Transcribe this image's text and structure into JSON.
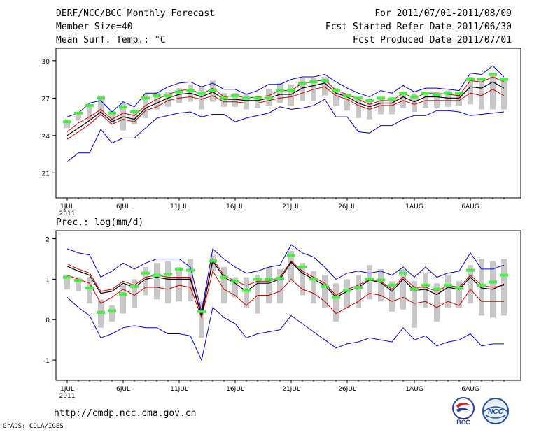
{
  "header": {
    "left": [
      "DERF/NCC/BCC Monthly Forecast",
      "Member Size=40",
      "Mean Surf. Temp.: °C"
    ],
    "right": [
      "For 2011/07/01-2011/08/09",
      "Fcst Started Refer Date 2011/06/30",
      "Fcst Produced Date 2011/07/01"
    ]
  },
  "footer": {
    "url": "http://cmdp.ncc.cma.gov.cn",
    "credit": "GrADS: COLA/IGES"
  },
  "logos": {
    "left_text": "BCC",
    "right_text": "NCC"
  },
  "colors": {
    "max_min": "#0000cc",
    "mean": "#000000",
    "spread": "#cc0000",
    "member_box": "#c8c8c8",
    "median": "#44ee44"
  },
  "chart_data": [
    {
      "type": "line",
      "title": "Mean Surf. Temp.: °C",
      "x_ticks": [
        "1JUL",
        "6JUL",
        "11JUL",
        "16JUL",
        "21JUL",
        "26JUL",
        "1AUG",
        "6AUG"
      ],
      "x_tick_days": [
        1,
        6,
        11,
        16,
        21,
        26,
        32,
        37
      ],
      "x_sublabel": "2011",
      "yticks": [
        21,
        24,
        27,
        30
      ],
      "ylim": [
        19,
        31
      ],
      "days": 40,
      "series": [
        {
          "name": "max",
          "values": [
            25.5,
            25.8,
            26.6,
            26.8,
            25.9,
            26.7,
            26.3,
            27.4,
            27.4,
            27.9,
            28.2,
            28.3,
            27.9,
            28.2,
            27.7,
            27.7,
            27.3,
            27.6,
            28.1,
            28.1,
            28.5,
            28.7,
            28.7,
            28.9,
            28.3,
            27.8,
            27.4,
            27.1,
            27.6,
            27.4,
            28.0,
            27.5,
            27.8,
            27.8,
            27.7,
            27.6,
            29.0,
            28.9,
            29.6,
            28.7
          ]
        },
        {
          "name": "upper",
          "values": [
            24.3,
            25.0,
            25.5,
            26.1,
            25.3,
            25.8,
            25.6,
            26.4,
            26.9,
            27.3,
            27.6,
            27.7,
            27.3,
            27.8,
            27.1,
            27.2,
            27.0,
            27.1,
            27.2,
            27.6,
            27.6,
            28.2,
            28.3,
            28.5,
            27.6,
            27.3,
            26.9,
            26.5,
            26.8,
            26.8,
            27.4,
            27.0,
            27.4,
            27.4,
            27.3,
            27.2,
            28.4,
            28.3,
            28.7,
            28.3
          ]
        },
        {
          "name": "mean",
          "values": [
            24.0,
            24.6,
            25.2,
            25.9,
            25.1,
            25.5,
            25.3,
            26.2,
            26.6,
            27.0,
            27.3,
            27.4,
            27.1,
            27.5,
            26.9,
            26.9,
            26.8,
            26.8,
            27.0,
            27.3,
            27.3,
            27.8,
            28.0,
            28.2,
            27.4,
            27.1,
            26.6,
            26.3,
            26.6,
            26.6,
            27.1,
            26.7,
            27.1,
            27.1,
            27.0,
            27.0,
            27.9,
            27.8,
            28.3,
            27.8
          ]
        },
        {
          "name": "lower",
          "values": [
            23.7,
            24.3,
            24.9,
            25.7,
            24.9,
            25.3,
            25.1,
            26.0,
            26.3,
            26.8,
            27.0,
            27.1,
            26.9,
            27.2,
            26.7,
            26.7,
            26.6,
            26.6,
            26.8,
            27.0,
            27.1,
            27.4,
            27.7,
            27.9,
            27.2,
            26.9,
            26.4,
            26.1,
            26.4,
            26.4,
            26.8,
            26.5,
            26.8,
            26.8,
            26.8,
            26.8,
            27.4,
            27.2,
            27.7,
            27.2
          ]
        },
        {
          "name": "min",
          "values": [
            21.9,
            22.6,
            22.6,
            24.5,
            23.4,
            23.8,
            23.8,
            24.6,
            25.4,
            25.6,
            25.8,
            25.9,
            25.5,
            25.7,
            25.7,
            25.1,
            25.4,
            25.6,
            25.8,
            26.3,
            26.1,
            26.2,
            26.4,
            26.9,
            25.5,
            25.5,
            24.3,
            24.2,
            24.8,
            24.8,
            25.3,
            25.6,
            25.6,
            26.0,
            26.0,
            25.9,
            25.6,
            25.7,
            25.8,
            25.9
          ]
        },
        {
          "name": "box_low",
          "values": [
            24.6,
            25.2,
            25.2,
            25.6,
            24.9,
            24.4,
            24.9,
            25.4,
            26.1,
            26.3,
            26.6,
            26.7,
            26.1,
            26.7,
            26.3,
            26.3,
            26.1,
            26.2,
            26.4,
            26.6,
            26.4,
            26.8,
            26.8,
            27.2,
            26.4,
            26.0,
            25.4,
            25.3,
            25.7,
            25.7,
            26.2,
            25.9,
            26.2,
            26.2,
            26.3,
            26.4,
            26.5,
            26.1,
            26.1,
            26.1
          ]
        },
        {
          "name": "box_high",
          "values": [
            25.3,
            25.7,
            26.5,
            27.2,
            26.0,
            26.6,
            26.1,
            27.3,
            27.5,
            27.5,
            27.8,
            28.1,
            27.9,
            28.4,
            27.4,
            27.4,
            27.4,
            27.2,
            27.7,
            28.2,
            28.1,
            28.6,
            28.6,
            28.7,
            27.8,
            27.3,
            27.0,
            26.9,
            27.1,
            27.1,
            27.5,
            27.3,
            27.5,
            27.5,
            27.6,
            27.4,
            28.7,
            28.3,
            28.9,
            28.4
          ]
        },
        {
          "name": "median",
          "values": [
            25.1,
            25.8,
            26.4,
            27.0,
            25.8,
            26.3,
            25.9,
            27.0,
            27.2,
            27.2,
            27.5,
            27.6,
            27.4,
            27.6,
            27.0,
            27.2,
            27.0,
            27.0,
            27.0,
            27.6,
            27.6,
            28.2,
            28.3,
            28.4,
            27.6,
            27.2,
            27.0,
            26.8,
            27.0,
            26.9,
            27.4,
            27.1,
            27.4,
            27.3,
            27.4,
            27.4,
            28.5,
            28.5,
            28.9,
            28.5
          ]
        }
      ]
    },
    {
      "type": "line",
      "title": "Prec.: log(mm/d)",
      "x_ticks": [
        "1JUL",
        "6JUL",
        "11JUL",
        "16JUL",
        "21JUL",
        "26JUL",
        "1AUG",
        "6AUG"
      ],
      "x_tick_days": [
        1,
        6,
        11,
        16,
        21,
        26,
        32,
        37
      ],
      "x_sublabel": "2011",
      "yticks": [
        -1,
        0,
        1,
        2
      ],
      "ylim": [
        -1.5,
        2.2
      ],
      "days": 40,
      "series": [
        {
          "name": "max",
          "values": [
            1.75,
            1.65,
            1.6,
            1.05,
            1.2,
            1.4,
            1.25,
            1.4,
            1.5,
            1.5,
            1.5,
            1.3,
            0.2,
            1.75,
            1.5,
            1.3,
            1.15,
            1.2,
            1.3,
            1.35,
            1.85,
            1.65,
            1.55,
            1.3,
            1.0,
            1.15,
            1.2,
            1.15,
            1.2,
            1.1,
            1.3,
            1.05,
            1.3,
            1.05,
            1.15,
            1.2,
            1.65,
            1.25,
            1.25,
            1.35
          ]
        },
        {
          "name": "upper",
          "values": [
            1.38,
            1.25,
            1.15,
            0.7,
            0.75,
            0.95,
            0.85,
            1.05,
            1.1,
            1.05,
            1.05,
            1.05,
            0.15,
            1.5,
            1.1,
            0.95,
            0.85,
            0.95,
            0.95,
            1.05,
            1.45,
            1.2,
            1.05,
            0.9,
            0.6,
            0.75,
            0.85,
            1.0,
            0.95,
            0.75,
            1.05,
            0.8,
            0.8,
            0.7,
            0.85,
            0.8,
            1.1,
            0.85,
            0.8,
            0.85
          ]
        },
        {
          "name": "mean",
          "values": [
            1.32,
            1.2,
            1.1,
            0.65,
            0.7,
            0.9,
            0.8,
            1.0,
            1.05,
            1.0,
            1.0,
            1.0,
            0.1,
            1.45,
            1.05,
            0.9,
            0.7,
            0.9,
            0.9,
            1.0,
            1.42,
            1.15,
            1.0,
            0.85,
            0.55,
            0.7,
            0.8,
            0.98,
            0.92,
            0.7,
            1.0,
            0.72,
            0.75,
            0.62,
            0.8,
            0.75,
            1.05,
            0.78,
            0.75,
            0.88
          ]
        },
        {
          "name": "lower",
          "values": [
            1.1,
            1.0,
            0.9,
            0.4,
            0.55,
            0.75,
            0.6,
            0.8,
            0.8,
            0.75,
            0.85,
            0.8,
            0.05,
            1.2,
            0.75,
            0.6,
            0.35,
            0.6,
            0.6,
            0.7,
            1.0,
            0.75,
            0.65,
            0.45,
            0.15,
            0.3,
            0.45,
            0.65,
            0.6,
            0.45,
            0.55,
            0.4,
            0.45,
            0.3,
            0.45,
            0.35,
            0.75,
            0.45,
            0.45,
            0.45
          ]
        },
        {
          "name": "min",
          "values": [
            0.55,
            0.3,
            0.1,
            -0.45,
            -0.35,
            -0.2,
            -0.15,
            -0.2,
            -0.2,
            -0.35,
            -0.35,
            -0.4,
            -1.0,
            0.3,
            0.05,
            -0.1,
            -0.45,
            -0.35,
            -0.3,
            -0.25,
            0.1,
            -0.1,
            -0.3,
            -0.5,
            -0.7,
            -0.6,
            -0.55,
            -0.45,
            -0.5,
            -0.55,
            -0.2,
            -0.5,
            -0.4,
            -0.65,
            -0.55,
            -0.5,
            -0.35,
            -0.65,
            -0.6,
            -0.6
          ]
        },
        {
          "name": "box_low",
          "values": [
            0.75,
            0.7,
            0.4,
            -0.2,
            -0.05,
            0.15,
            0.3,
            0.6,
            0.5,
            0.4,
            0.45,
            0.45,
            -0.45,
            1.2,
            0.4,
            0.55,
            0.3,
            0.15,
            0.4,
            0.4,
            0.95,
            0.6,
            0.4,
            0.3,
            -0.05,
            0.3,
            0.3,
            0.5,
            0.45,
            0.2,
            0.25,
            -0.2,
            0.3,
            -0.05,
            0.3,
            0.3,
            0.4,
            0.1,
            0.05,
            0.1
          ]
        },
        {
          "name": "box_high",
          "values": [
            1.1,
            1.05,
            1.05,
            0.5,
            0.35,
            0.85,
            1.0,
            1.3,
            1.4,
            1.45,
            1.3,
            1.5,
            0.45,
            1.6,
            1.3,
            1.05,
            1.05,
            1.1,
            1.3,
            1.25,
            1.7,
            1.4,
            1.2,
            1.1,
            0.9,
            1.0,
            1.1,
            1.35,
            1.25,
            0.95,
            1.25,
            0.95,
            1.15,
            0.9,
            1.1,
            0.95,
            1.35,
            1.5,
            1.45,
            1.5
          ]
        },
        {
          "name": "median",
          "values": [
            1.05,
            0.97,
            0.78,
            0.18,
            0.22,
            0.63,
            0.82,
            1.15,
            1.1,
            1.12,
            1.25,
            1.22,
            0.2,
            1.45,
            1.05,
            0.95,
            0.72,
            1.0,
            1.0,
            1.02,
            1.58,
            1.3,
            1.0,
            0.82,
            0.55,
            0.72,
            0.8,
            1.0,
            0.98,
            0.85,
            1.15,
            0.75,
            0.85,
            0.75,
            0.85,
            0.78,
            1.22,
            0.85,
            0.93,
            1.1
          ]
        }
      ]
    }
  ]
}
